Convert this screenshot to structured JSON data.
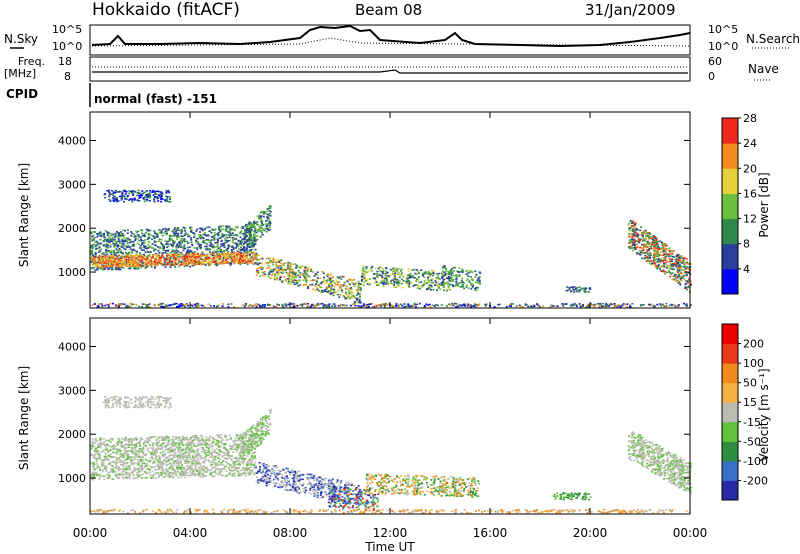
{
  "header": {
    "station": "Hokkaido (fitACF)",
    "beam": "Beam 08",
    "date": "31/Jan/2009"
  },
  "strip_panels": {
    "nsky": {
      "label": "N.Sky",
      "left_ticks": [
        "10^5",
        "10^0"
      ],
      "right_ticks": [
        "10^5",
        "10^0"
      ],
      "right_label": "N.Search"
    },
    "freq": {
      "label_line1": "Freq.",
      "label_line2": "[MHz]",
      "left_ticks": [
        "18",
        "8"
      ],
      "right_ticks": [
        "60",
        "0"
      ],
      "right_label": "Nave"
    },
    "cpid": {
      "label": "CPID",
      "value": "normal (fast) -151"
    }
  },
  "chart_data": [
    {
      "type": "heatmap",
      "title": "Power",
      "ylabel": "Slant Range [km]",
      "ylim": [
        180,
        4650
      ],
      "yticks": [
        "1000",
        "2000",
        "3000",
        "4000"
      ],
      "colorbar_label": "Power [dB]",
      "colorbar_ticks": [
        "28",
        "24",
        "20",
        "16",
        "12",
        "8",
        "4"
      ],
      "colors": [
        "#0000ff",
        "#2a3f9c",
        "#2f8a4a",
        "#6abf3f",
        "#e5d03a",
        "#f28c1e",
        "#ee2a1e"
      ]
    },
    {
      "type": "heatmap",
      "title": "Velocity",
      "ylabel": "Slant Range [km]",
      "xlabel": "Time UT",
      "ylim": [
        180,
        4650
      ],
      "yticks": [
        "1000",
        "2000",
        "3000",
        "4000"
      ],
      "xticks": [
        "00:00",
        "04:00",
        "08:00",
        "12:00",
        "16:00",
        "20:00",
        "00:00"
      ],
      "colorbar_label": "Velocity [m s⁻¹]",
      "colorbar_ticks": [
        "200",
        "100",
        "50",
        "15",
        "-15",
        "-50",
        "-100",
        "-200"
      ],
      "colors": [
        "#2a2aa8",
        "#3a6fc9",
        "#2e8e3e",
        "#62c23e",
        "#bcbcb4",
        "#f5b244",
        "#f08a1c",
        "#e83a1a",
        "#ee0000"
      ]
    }
  ]
}
